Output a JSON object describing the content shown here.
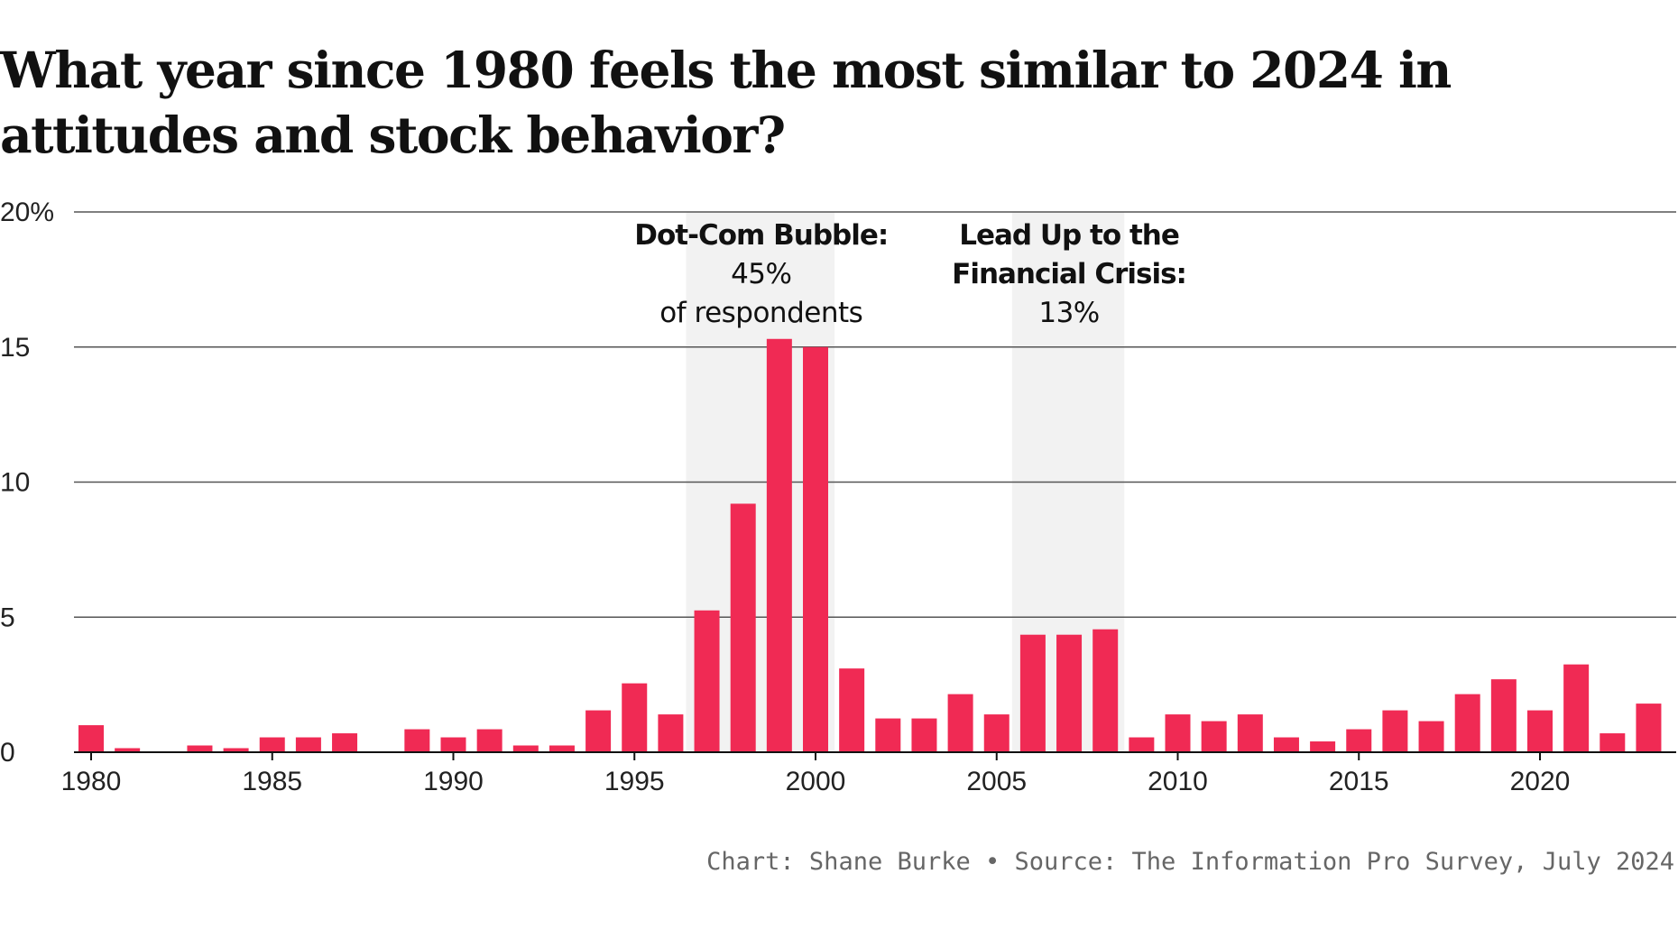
{
  "title": "What year since 1980 feels the most similar to 2024 in attitudes and stock behavior?",
  "credit": "Chart: Shane Burke • Source: The Information Pro Survey, July 2024",
  "colors": {
    "bar": "#f02a54",
    "highlight": "#f2f2f2",
    "grid": "#555555",
    "text": "#111111"
  },
  "chart_data": {
    "type": "bar",
    "title": "What year since 1980 feels the most similar to 2024 in attitudes and stock behavior?",
    "xlabel": "",
    "ylabel": "",
    "ylim": [
      0,
      20
    ],
    "yticks": [
      {
        "value": 0,
        "label": "0"
      },
      {
        "value": 5,
        "label": "5"
      },
      {
        "value": 10,
        "label": "10"
      },
      {
        "value": 15,
        "label": "15"
      },
      {
        "value": 20,
        "label": "20%"
      }
    ],
    "xticks": [
      "1980",
      "1985",
      "1990",
      "1995",
      "2000",
      "2005",
      "2010",
      "2015",
      "2020"
    ],
    "categories": [
      1980,
      1981,
      1982,
      1983,
      1984,
      1985,
      1986,
      1987,
      1988,
      1989,
      1990,
      1991,
      1992,
      1993,
      1994,
      1995,
      1996,
      1997,
      1998,
      1999,
      2000,
      2001,
      2002,
      2003,
      2004,
      2005,
      2006,
      2007,
      2008,
      2009,
      2010,
      2011,
      2012,
      2013,
      2014,
      2015,
      2016,
      2017,
      2018,
      2019,
      2020,
      2021,
      2022,
      2023
    ],
    "values": [
      1.0,
      0.15,
      0,
      0.25,
      0.15,
      0.55,
      0.55,
      0.7,
      0,
      0.85,
      0.55,
      0.85,
      0.25,
      0.25,
      1.55,
      2.55,
      1.4,
      5.25,
      9.2,
      15.3,
      15.0,
      3.1,
      1.25,
      1.25,
      2.15,
      1.4,
      4.35,
      4.35,
      4.55,
      0.55,
      1.4,
      1.15,
      1.4,
      0.55,
      0.4,
      0.85,
      1.55,
      1.15,
      2.15,
      2.7,
      1.55,
      3.25,
      0.7,
      1.8
    ],
    "highlights": [
      {
        "from": 1997,
        "to": 2000,
        "label_bold": "Dot-Com Bubble:",
        "lines": [
          "45%",
          "of respondents"
        ]
      },
      {
        "from": 2006,
        "to": 2008,
        "label_bold_lines": [
          "Lead Up to the",
          "Financial Crisis:"
        ],
        "lines": [
          "13%"
        ]
      }
    ]
  }
}
